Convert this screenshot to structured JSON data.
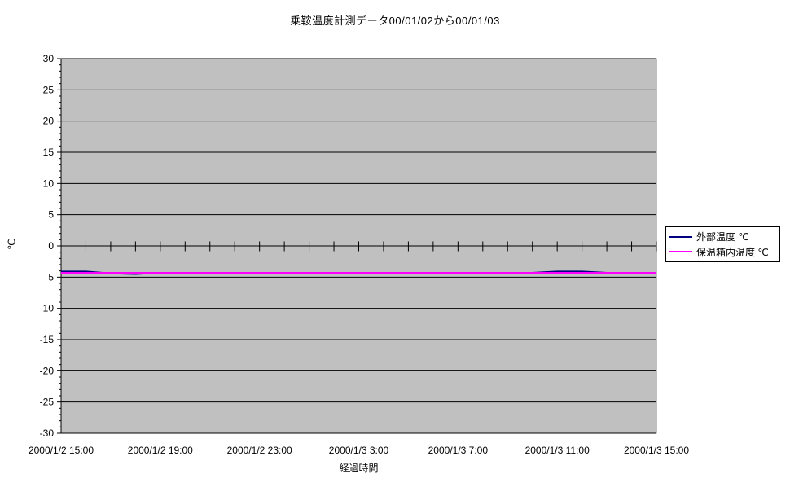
{
  "chart_data": {
    "type": "line",
    "title": "乗鞍温度計測データ00/01/02から00/01/03",
    "xlabel": "経過時間",
    "ylabel": "℃",
    "ylim": [
      -30,
      30
    ],
    "y_major_step": 5,
    "y_minor_step": 1,
    "grid": true,
    "legend_position": "right",
    "plot_bg_color": "#c0c0c0",
    "plot_border_color": "#808080",
    "grid_color": "#000000",
    "axis_color": "#000000",
    "text_color": "#000000",
    "x_hours": [
      0,
      1,
      2,
      3,
      4,
      5,
      6,
      7,
      8,
      9,
      10,
      11,
      12,
      13,
      14,
      15,
      16,
      17,
      18,
      19,
      20,
      21,
      22,
      23,
      24
    ],
    "x_label_interval_hours": 4,
    "x_tick_labels": [
      "2000/1/2 15:00",
      "2000/1/2 19:00",
      "2000/1/2 23:00",
      "2000/1/3 3:00",
      "2000/1/3 7:00",
      "2000/1/3 11:00",
      "2000/1/3 15:00"
    ],
    "series": [
      {
        "name": "外部温度 ℃",
        "color": "#000080",
        "values": [
          -4.1,
          -4.1,
          -4.4,
          -4.5,
          -4.3,
          -4.3,
          -4.3,
          -4.3,
          -4.3,
          -4.3,
          -4.3,
          -4.3,
          -4.3,
          -4.3,
          -4.3,
          -4.3,
          -4.3,
          -4.3,
          -4.3,
          -4.3,
          -4.1,
          -4.1,
          -4.3,
          -4.3,
          -4.3
        ]
      },
      {
        "name": "保温箱内温度 ℃",
        "color": "#ff00ff",
        "values": [
          -4.3,
          -4.3,
          -4.3,
          -4.3,
          -4.3,
          -4.3,
          -4.3,
          -4.3,
          -4.3,
          -4.3,
          -4.3,
          -4.3,
          -4.3,
          -4.3,
          -4.3,
          -4.3,
          -4.3,
          -4.3,
          -4.3,
          -4.3,
          -4.3,
          -4.3,
          -4.3,
          -4.3,
          -4.3
        ]
      }
    ]
  }
}
